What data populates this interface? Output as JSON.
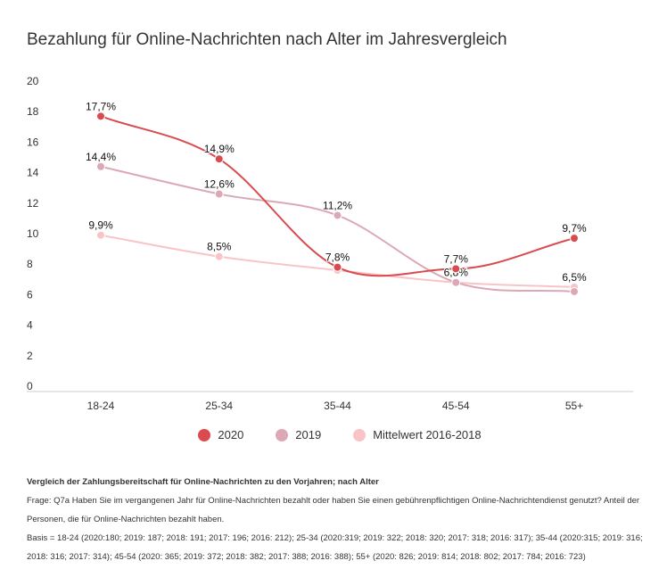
{
  "chart_data": {
    "type": "line",
    "title": "Bezahlung für Online-Nachrichten nach Alter im Jahresvergleich",
    "categories": [
      "18-24",
      "25-34",
      "35-44",
      "45-54",
      "55+"
    ],
    "ylim": [
      0,
      20
    ],
    "yticks": [
      0,
      2,
      4,
      6,
      8,
      10,
      12,
      14,
      16,
      18,
      20
    ],
    "grid": false,
    "legend_position": "bottom",
    "series": [
      {
        "name": "2020",
        "color": "#d94b4f",
        "values": [
          17.7,
          14.9,
          7.8,
          7.7,
          9.7
        ],
        "labels": [
          "17,7%",
          "14,9%",
          "7,8%",
          "7,7%",
          "9,7%"
        ]
      },
      {
        "name": "2019",
        "color": "#dca8b6",
        "values": [
          14.4,
          12.6,
          11.2,
          6.8,
          6.2
        ],
        "labels": [
          "14,4%",
          "12,6%",
          "11,2%",
          "",
          ""
        ]
      },
      {
        "name": "Mittelwert 2016-2018",
        "color": "#f8c4c6",
        "values": [
          9.9,
          8.5,
          7.6,
          6.8,
          6.5
        ],
        "labels": [
          "9,9%",
          "8,5%",
          "",
          "6,8%",
          "6,5%"
        ]
      }
    ]
  },
  "notes": {
    "heading": "Vergleich der Zahlungsbereitschaft für Online-Nachrichten zu den Vorjahren; nach Alter",
    "question": "Frage: Q7a Haben Sie im vergangenen Jahr für Online-Nachrichten bezahlt oder haben Sie einen gebührenpflichtigen Online-Nachrichtendienst genutzt? Anteil der Personen, die für Online-Nachrichten bezahlt haben.",
    "basis": "Basis = 18-24 (2020:180; 2019: 187; 2018: 191; 2017: 196; 2016: 212); 25-34 (2020:319; 2019: 322; 2018: 320; 2017: 318; 2016: 317); 35-44 (2020:315; 2019: 316; 2018: 316; 2017: 314); 45-54 (2020: 365; 2019: 372; 2018: 382; 2017: 388; 2016: 388); 55+ (2020: 826; 2019: 814; 2018: 802; 2017: 784; 2016: 723)"
  }
}
